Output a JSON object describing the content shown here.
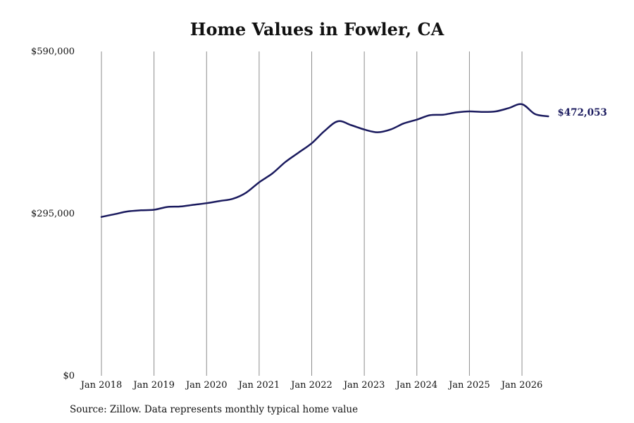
{
  "chart_data": {
    "type": "line",
    "title": "Home Values in Fowler, CA",
    "xlabel": "",
    "ylabel": "",
    "ylim": [
      0,
      590000
    ],
    "grid": "vertical",
    "x_tick_labels": [
      "Jan 2018",
      "Jan 2019",
      "Jan 2020",
      "Jan 2021",
      "Jan 2022",
      "Jan 2023",
      "Jan 2024",
      "Jan 2025",
      "Jan 2026"
    ],
    "y_tick_labels": [
      "$590,000",
      "$295,000",
      "$0"
    ],
    "y_tick_values": [
      590000,
      295000,
      0
    ],
    "end_label": "$472,053",
    "line_color": "#1a1a5e",
    "series": [
      {
        "x": [
          "2018-01",
          "2018-04",
          "2018-07",
          "2018-10",
          "2019-01",
          "2019-04",
          "2019-07",
          "2019-10",
          "2020-01",
          "2020-04",
          "2020-07",
          "2020-10",
          "2021-01",
          "2021-04",
          "2021-07",
          "2021-10",
          "2022-01",
          "2022-04",
          "2022-07",
          "2022-10",
          "2023-01",
          "2023-04",
          "2023-07",
          "2023-10",
          "2024-01",
          "2024-04",
          "2024-07",
          "2024-10",
          "2025-01",
          "2025-04",
          "2025-07",
          "2025-10",
          "2026-01",
          "2026-04",
          "2026-07"
        ],
        "values": [
          289000,
          294000,
          299000,
          301000,
          302000,
          307000,
          308000,
          311000,
          314000,
          318000,
          322000,
          333000,
          352000,
          368000,
          389000,
          406000,
          423000,
          446000,
          463000,
          456000,
          448000,
          443000,
          448000,
          459000,
          466000,
          474000,
          475000,
          479000,
          481000,
          480000,
          481000,
          487000,
          494000,
          476000,
          472053
        ]
      }
    ]
  },
  "footer": {
    "source": "Source: Zillow. Data represents monthly typical home value"
  }
}
